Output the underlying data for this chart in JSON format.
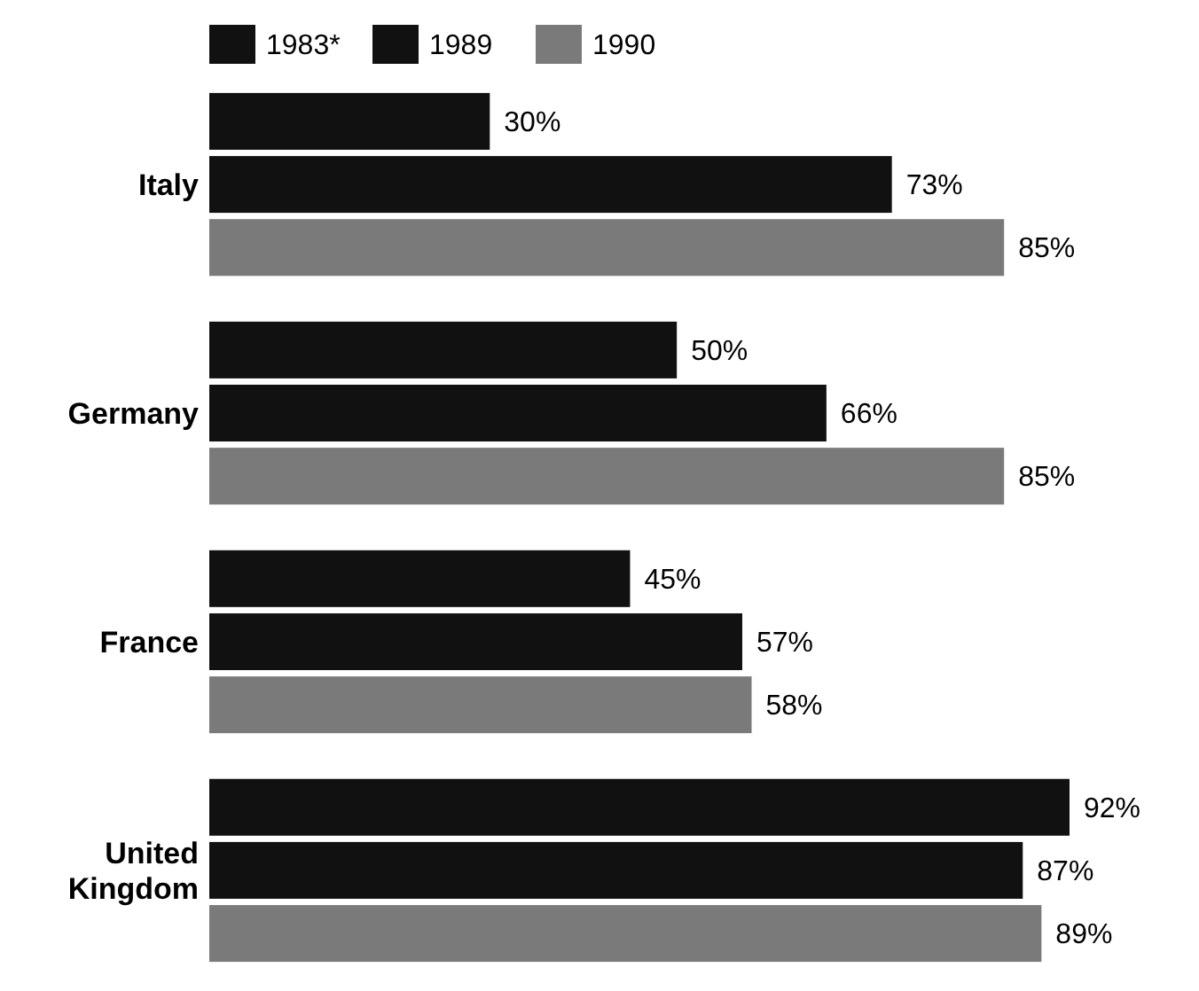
{
  "chart_data": {
    "type": "bar",
    "orientation": "horizontal",
    "categories": [
      "Italy",
      "Germany",
      "France",
      "United Kingdom"
    ],
    "series": [
      {
        "name": "1983*",
        "color": "#111111",
        "values": [
          30,
          50,
          45,
          92
        ],
        "value_labels": [
          "30%",
          "50%",
          "45%",
          "92%"
        ]
      },
      {
        "name": "1989",
        "color": "#111111",
        "values": [
          73,
          66,
          57,
          87
        ],
        "value_labels": [
          "73%",
          "66%",
          "57%",
          "87%"
        ]
      },
      {
        "name": "1990",
        "color": "#7a7a7a",
        "values": [
          85,
          85,
          58,
          89
        ],
        "value_labels": [
          "85%",
          "85%",
          "58%",
          "89%"
        ]
      }
    ],
    "tick_labels": "y",
    "legend": "top left"
  }
}
